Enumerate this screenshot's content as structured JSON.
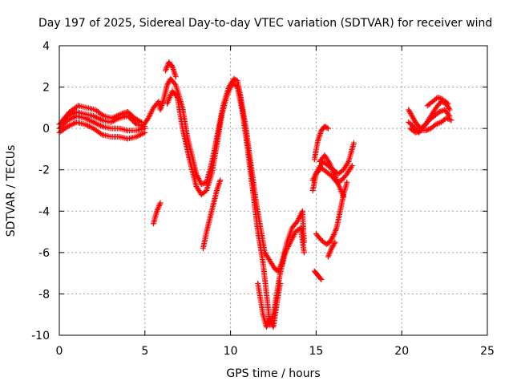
{
  "chart_data": {
    "type": "scatter",
    "title": "Day 197 of 2025, Sidereal Day-to-day VTEC variation (SDTVAR) for receiver wind",
    "xlabel": "GPS time / hours",
    "ylabel": "SDTVAR / TECUs",
    "xlim": [
      0,
      25
    ],
    "ylim": [
      -10,
      4
    ],
    "xticks": [
      0,
      5,
      10,
      15,
      20,
      25
    ],
    "yticks": [
      -10,
      -8,
      -6,
      -4,
      -2,
      0,
      2,
      4
    ],
    "grid": true,
    "marker": "+",
    "color": "#ff0000",
    "series": [
      {
        "tracks": [
          [
            [
              0.0,
              -0.2
            ],
            [
              0.5,
              0.1
            ],
            [
              1.0,
              0.3
            ],
            [
              1.5,
              0.2
            ],
            [
              2.0,
              0.0
            ],
            [
              2.5,
              -0.3
            ],
            [
              3.0,
              -0.4
            ],
            [
              3.5,
              -0.4
            ],
            [
              4.0,
              -0.5
            ],
            [
              4.5,
              -0.4
            ],
            [
              5.0,
              -0.2
            ]
          ],
          [
            [
              0.0,
              0.0
            ],
            [
              0.5,
              0.4
            ],
            [
              1.0,
              0.6
            ],
            [
              1.5,
              0.5
            ],
            [
              2.0,
              0.3
            ],
            [
              2.5,
              0.1
            ],
            [
              3.0,
              0.0
            ],
            [
              3.5,
              0.0
            ],
            [
              4.0,
              -0.1
            ],
            [
              4.5,
              -0.1
            ],
            [
              5.0,
              0.0
            ]
          ],
          [
            [
              0.0,
              0.2
            ],
            [
              0.5,
              0.6
            ],
            [
              1.0,
              0.8
            ],
            [
              1.5,
              0.7
            ],
            [
              2.0,
              0.6
            ],
            [
              2.5,
              0.4
            ],
            [
              3.0,
              0.3
            ],
            [
              3.5,
              0.5
            ],
            [
              4.0,
              0.6
            ],
            [
              4.5,
              0.2
            ],
            [
              5.0,
              0.1
            ]
          ],
          [
            [
              0.2,
              0.4
            ],
            [
              0.6,
              0.8
            ],
            [
              1.1,
              1.1
            ],
            [
              1.6,
              1.0
            ],
            [
              2.1,
              0.9
            ],
            [
              2.6,
              0.6
            ],
            [
              3.1,
              0.5
            ],
            [
              3.6,
              0.7
            ],
            [
              4.0,
              0.8
            ],
            [
              4.4,
              0.5
            ],
            [
              4.8,
              0.3
            ]
          ],
          [
            [
              4.8,
              0.0
            ],
            [
              5.2,
              0.5
            ],
            [
              5.5,
              1.0
            ],
            [
              5.8,
              1.3
            ],
            [
              5.9,
              0.9
            ],
            [
              6.1,
              1.4
            ],
            [
              6.3,
              2.1
            ],
            [
              6.5,
              2.4
            ],
            [
              6.8,
              2.1
            ],
            [
              7.2,
              1.0
            ],
            [
              7.5,
              -0.5
            ],
            [
              7.8,
              -1.5
            ],
            [
              8.0,
              -2.2
            ],
            [
              8.3,
              -2.7
            ],
            [
              8.6,
              -2.6
            ],
            [
              8.8,
              -2.0
            ],
            [
              9.0,
              -1.3
            ],
            [
              9.3,
              0.0
            ],
            [
              9.6,
              1.2
            ],
            [
              9.9,
              2.0
            ],
            [
              10.2,
              2.4
            ],
            [
              10.4,
              2.3
            ],
            [
              10.6,
              1.5
            ],
            [
              10.9,
              0.0
            ],
            [
              11.2,
              -1.8
            ],
            [
              11.5,
              -3.6
            ],
            [
              11.8,
              -5.0
            ],
            [
              12.0,
              -6.0
            ],
            [
              12.3,
              -6.4
            ],
            [
              12.6,
              -6.8
            ],
            [
              12.8,
              -6.9
            ],
            [
              13.0,
              -6.5
            ],
            [
              13.3,
              -5.5
            ],
            [
              13.6,
              -4.8
            ],
            [
              13.9,
              -4.5
            ],
            [
              14.2,
              -4.0
            ],
            [
              14.3,
              -5.5
            ]
          ],
          [
            [
              6.3,
              1.2
            ],
            [
              6.6,
              1.8
            ],
            [
              6.9,
              1.5
            ],
            [
              7.2,
              0.0
            ],
            [
              7.6,
              -1.5
            ],
            [
              8.0,
              -2.8
            ],
            [
              8.3,
              -3.2
            ],
            [
              8.6,
              -3.0
            ],
            [
              8.9,
              -2.2
            ],
            [
              9.2,
              -0.8
            ],
            [
              9.5,
              0.7
            ],
            [
              9.8,
              1.6
            ],
            [
              10.1,
              2.2
            ],
            [
              10.4,
              2.0
            ],
            [
              10.7,
              0.8
            ],
            [
              11.0,
              -1.0
            ],
            [
              11.3,
              -3.0
            ],
            [
              11.6,
              -5.0
            ],
            [
              11.9,
              -6.5
            ],
            [
              12.1,
              -8.0
            ],
            [
              12.3,
              -9.5
            ],
            [
              12.5,
              -9.0
            ],
            [
              12.7,
              -8.0
            ],
            [
              12.9,
              -7.0
            ],
            [
              13.2,
              -6.0
            ],
            [
              13.5,
              -5.5
            ],
            [
              13.8,
              -5.0
            ],
            [
              14.1,
              -4.8
            ],
            [
              14.3,
              -6.0
            ]
          ],
          [
            [
              6.2,
              2.8
            ],
            [
              6.4,
              3.2
            ],
            [
              6.6,
              3.0
            ],
            [
              6.8,
              2.5
            ]
          ],
          [
            [
              8.4,
              -5.8
            ],
            [
              8.6,
              -5.0
            ],
            [
              8.9,
              -4.0
            ],
            [
              9.2,
              -3.0
            ],
            [
              9.4,
              -2.5
            ]
          ],
          [
            [
              11.6,
              -7.5
            ],
            [
              11.9,
              -9.0
            ],
            [
              12.1,
              -9.6
            ],
            [
              12.3,
              -9.2
            ],
            [
              12.5,
              -9.6
            ],
            [
              12.7,
              -8.5
            ],
            [
              12.9,
              -7.5
            ]
          ],
          [
            [
              5.5,
              -4.6
            ],
            [
              5.7,
              -4.0
            ],
            [
              5.9,
              -3.6
            ]
          ],
          [
            [
              14.9,
              -1.5
            ],
            [
              15.1,
              -0.6
            ],
            [
              15.3,
              -0.1
            ],
            [
              15.5,
              0.1
            ],
            [
              15.7,
              0.0
            ]
          ],
          [
            [
              14.8,
              -3.0
            ],
            [
              15.0,
              -2.2
            ],
            [
              15.3,
              -1.9
            ],
            [
              15.6,
              -2.1
            ],
            [
              15.9,
              -2.3
            ],
            [
              16.2,
              -2.6
            ],
            [
              16.5,
              -2.5
            ],
            [
              16.8,
              -2.2
            ],
            [
              17.1,
              -1.8
            ]
          ],
          [
            [
              14.8,
              -2.5
            ],
            [
              15.1,
              -2.0
            ],
            [
              15.4,
              -1.6
            ],
            [
              15.7,
              -1.8
            ],
            [
              16.0,
              -2.0
            ],
            [
              16.3,
              -2.2
            ],
            [
              16.6,
              -2.0
            ],
            [
              16.9,
              -1.6
            ],
            [
              17.2,
              -0.7
            ]
          ],
          [
            [
              15.0,
              -5.1
            ],
            [
              15.3,
              -5.4
            ],
            [
              15.6,
              -5.6
            ],
            [
              15.8,
              -5.5
            ],
            [
              16.0,
              -5.2
            ],
            [
              16.2,
              -4.8
            ],
            [
              16.4,
              -4.0
            ],
            [
              16.6,
              -3.2
            ],
            [
              16.8,
              -2.6
            ]
          ],
          [
            [
              15.2,
              -1.6
            ],
            [
              15.5,
              -1.3
            ],
            [
              15.8,
              -1.7
            ],
            [
              16.1,
              -2.3
            ],
            [
              16.4,
              -2.9
            ],
            [
              16.6,
              -3.3
            ]
          ],
          [
            [
              15.7,
              -6.2
            ],
            [
              15.9,
              -5.8
            ],
            [
              16.1,
              -5.5
            ]
          ],
          [
            [
              14.9,
              -6.9
            ],
            [
              15.1,
              -7.1
            ],
            [
              15.3,
              -7.3
            ]
          ],
          [
            [
              20.4,
              0.9
            ],
            [
              20.6,
              0.6
            ],
            [
              20.8,
              0.3
            ],
            [
              21.1,
              0.0
            ],
            [
              21.4,
              0.2
            ],
            [
              21.7,
              0.6
            ],
            [
              22.0,
              1.0
            ],
            [
              22.3,
              1.3
            ],
            [
              22.6,
              1.2
            ],
            [
              22.8,
              0.9
            ]
          ],
          [
            [
              20.4,
              0.3
            ],
            [
              20.7,
              0.1
            ],
            [
              21.0,
              -0.2
            ],
            [
              21.3,
              0.1
            ],
            [
              21.6,
              0.4
            ],
            [
              21.9,
              0.6
            ],
            [
              22.2,
              0.8
            ],
            [
              22.5,
              0.9
            ],
            [
              22.8,
              0.6
            ]
          ],
          [
            [
              20.5,
              0.0
            ],
            [
              20.8,
              -0.2
            ],
            [
              21.1,
              -0.1
            ],
            [
              21.4,
              -0.1
            ],
            [
              21.7,
              0.0
            ],
            [
              22.0,
              0.2
            ],
            [
              22.3,
              0.3
            ],
            [
              22.6,
              0.5
            ],
            [
              22.9,
              0.4
            ]
          ],
          [
            [
              21.5,
              1.1
            ],
            [
              21.8,
              1.3
            ],
            [
              22.1,
              1.5
            ],
            [
              22.4,
              1.4
            ],
            [
              22.7,
              1.2
            ]
          ]
        ]
      }
    ]
  }
}
